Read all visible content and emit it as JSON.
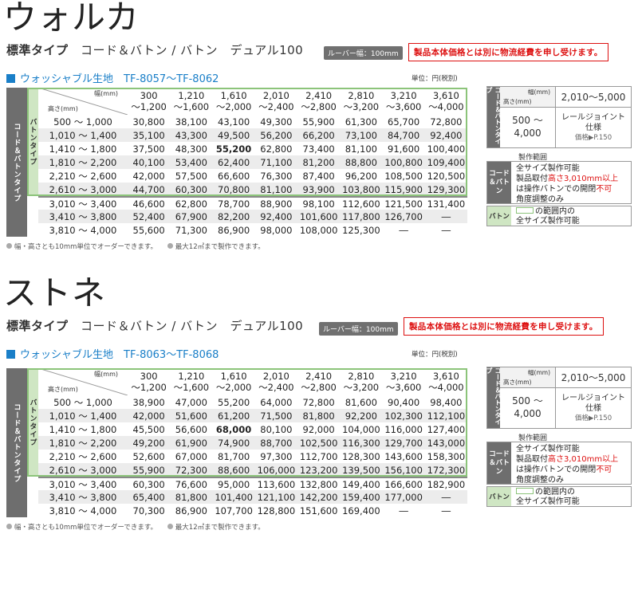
{
  "sections": [
    {
      "title": "ウォルカ",
      "type_label": "標準タイプ",
      "type_desc": "コード＆バトン / バトン　デュアル100",
      "louver": "ルーバー幅：100mm",
      "notice": "製品本体価格とは別に物流経費を申し受けます。",
      "fabric": "ウォッシャブル生地　TF-8057〜TF-8062",
      "unit": "単位：円(税別)",
      "corner_w": "幅(mm)",
      "corner_h": "高さ(mm)",
      "vbar_outer": "コード＆バトンタイプ",
      "vbar_inner": "バトンタイプ",
      "widths": [
        [
          "300",
          "〜1,200"
        ],
        [
          "1,210",
          "〜1,600"
        ],
        [
          "1,610",
          "〜2,000"
        ],
        [
          "2,010",
          "〜2,400"
        ],
        [
          "2,410",
          "〜2,800"
        ],
        [
          "2,810",
          "〜3,200"
        ],
        [
          "3,210",
          "〜3,600"
        ],
        [
          "3,610",
          "〜4,000"
        ]
      ],
      "rows": [
        {
          "h": "500 〜 1,000",
          "v": [
            "30,800",
            "38,100",
            "43,100",
            "49,300",
            "55,900",
            "61,300",
            "65,700",
            "72,800"
          ]
        },
        {
          "h": "1,010 〜 1,400",
          "v": [
            "35,100",
            "43,300",
            "49,500",
            "56,200",
            "66,200",
            "73,100",
            "84,700",
            "92,400"
          ]
        },
        {
          "h": "1,410 〜 1,800",
          "v": [
            "37,500",
            "48,300",
            "55,200",
            "62,800",
            "73,400",
            "81,100",
            "91,600",
            "100,400"
          ]
        },
        {
          "h": "1,810 〜 2,200",
          "v": [
            "40,100",
            "53,400",
            "62,400",
            "71,100",
            "81,200",
            "88,800",
            "100,800",
            "109,400"
          ]
        },
        {
          "h": "2,210 〜 2,600",
          "v": [
            "42,000",
            "57,500",
            "66,600",
            "76,300",
            "87,400",
            "96,200",
            "108,500",
            "120,500"
          ]
        },
        {
          "h": "2,610 〜 3,000",
          "v": [
            "44,700",
            "60,300",
            "70,800",
            "81,100",
            "93,900",
            "103,800",
            "115,900",
            "129,300"
          ]
        },
        {
          "h": "3,010 〜 3,400",
          "v": [
            "46,600",
            "62,800",
            "78,700",
            "88,900",
            "98,100",
            "112,600",
            "121,500",
            "131,400"
          ]
        },
        {
          "h": "3,410 〜 3,800",
          "v": [
            "52,400",
            "67,900",
            "82,200",
            "92,400",
            "101,600",
            "117,800",
            "126,700",
            "―"
          ]
        },
        {
          "h": "3,810 〜 4,000",
          "v": [
            "55,600",
            "71,300",
            "86,900",
            "98,000",
            "108,000",
            "125,300",
            "―",
            "―"
          ]
        }
      ],
      "bold_cell": "55,200",
      "footnote1": "幅・高さとも10mm単位でオーダーできます。",
      "footnote2": "最大12㎡まで製作できます。",
      "side": {
        "vbar": "コード＆バトンタイプ",
        "corner_w": "幅(mm)",
        "corner_h": "高さ(mm)",
        "range": "2,010〜5,000",
        "hval1": "500 〜",
        "hval2": "4,000",
        "spec1": "レールジョイント",
        "spec2": "仕様",
        "price": "価格▶P.150",
        "seizo": "製作範囲",
        "lab_a": "コード＆バトン",
        "txt_a1": "全サイズ製作可能",
        "txt_a2a": "製品取付",
        "txt_a2b": "高さ3,010mm以上",
        "txt_a3a": "は操作バトンでの開閉",
        "txt_a3b": "不可",
        "txt_a4": "角度調整のみ",
        "lab_b": "バトン",
        "txt_b1": "の範囲内の",
        "txt_b2": "全サイズ製作可能"
      }
    },
    {
      "title": "ストネ",
      "type_label": "標準タイプ",
      "type_desc": "コード＆バトン / バトン　デュアル100",
      "louver": "ルーバー幅：100mm",
      "notice": "製品本体価格とは別に物流経費を申し受けます。",
      "fabric": "ウォッシャブル生地　TF-8063〜TF-8068",
      "unit": "単位：円(税別)",
      "corner_w": "幅(mm)",
      "corner_h": "高さ(mm)",
      "vbar_outer": "コード＆バトンタイプ",
      "vbar_inner": "バトンタイプ",
      "widths": [
        [
          "300",
          "〜1,200"
        ],
        [
          "1,210",
          "〜1,600"
        ],
        [
          "1,610",
          "〜2,000"
        ],
        [
          "2,010",
          "〜2,400"
        ],
        [
          "2,410",
          "〜2,800"
        ],
        [
          "2,810",
          "〜3,200"
        ],
        [
          "3,210",
          "〜3,600"
        ],
        [
          "3,610",
          "〜4,000"
        ]
      ],
      "rows": [
        {
          "h": "500 〜 1,000",
          "v": [
            "38,900",
            "47,000",
            "55,200",
            "64,000",
            "72,800",
            "81,600",
            "90,400",
            "98,400"
          ]
        },
        {
          "h": "1,010 〜 1,400",
          "v": [
            "42,000",
            "51,600",
            "61,200",
            "71,500",
            "81,800",
            "92,200",
            "102,300",
            "112,100"
          ]
        },
        {
          "h": "1,410 〜 1,800",
          "v": [
            "45,500",
            "56,600",
            "68,000",
            "80,100",
            "92,000",
            "104,000",
            "116,000",
            "127,400"
          ]
        },
        {
          "h": "1,810 〜 2,200",
          "v": [
            "49,200",
            "61,900",
            "74,900",
            "88,700",
            "102,500",
            "116,300",
            "129,700",
            "143,000"
          ]
        },
        {
          "h": "2,210 〜 2,600",
          "v": [
            "52,600",
            "67,000",
            "81,700",
            "97,300",
            "112,700",
            "128,300",
            "143,600",
            "158,300"
          ]
        },
        {
          "h": "2,610 〜 3,000",
          "v": [
            "55,900",
            "72,300",
            "88,600",
            "106,000",
            "123,200",
            "139,500",
            "156,100",
            "172,300"
          ]
        },
        {
          "h": "3,010 〜 3,400",
          "v": [
            "60,300",
            "76,600",
            "95,000",
            "113,600",
            "132,800",
            "149,400",
            "166,600",
            "182,900"
          ]
        },
        {
          "h": "3,410 〜 3,800",
          "v": [
            "65,400",
            "81,800",
            "101,400",
            "121,100",
            "142,200",
            "159,400",
            "177,000",
            "―"
          ]
        },
        {
          "h": "3,810 〜 4,000",
          "v": [
            "70,300",
            "86,900",
            "107,700",
            "128,800",
            "151,600",
            "169,400",
            "―",
            "―"
          ]
        }
      ],
      "bold_cell": "68,000",
      "footnote1": "幅・高さとも10mm単位でオーダーできます。",
      "footnote2": "最大12㎡まで製作できます。",
      "side": {
        "vbar": "コード＆バトンタイプ",
        "corner_w": "幅(mm)",
        "corner_h": "高さ(mm)",
        "range": "2,010〜5,000",
        "hval1": "500 〜",
        "hval2": "4,000",
        "spec1": "レールジョイント",
        "spec2": "仕様",
        "price": "価格▶P.150",
        "seizo": "製作範囲",
        "lab_a": "コード＆バトン",
        "txt_a1": "全サイズ製作可能",
        "txt_a2a": "製品取付",
        "txt_a2b": "高さ3,010mm以上",
        "txt_a3a": "は操作バトンでの開閉",
        "txt_a3b": "不可",
        "txt_a4": "角度調整のみ",
        "lab_b": "バトン",
        "txt_b1": "の範囲内の",
        "txt_b2": "全サイズ製作可能"
      }
    }
  ]
}
